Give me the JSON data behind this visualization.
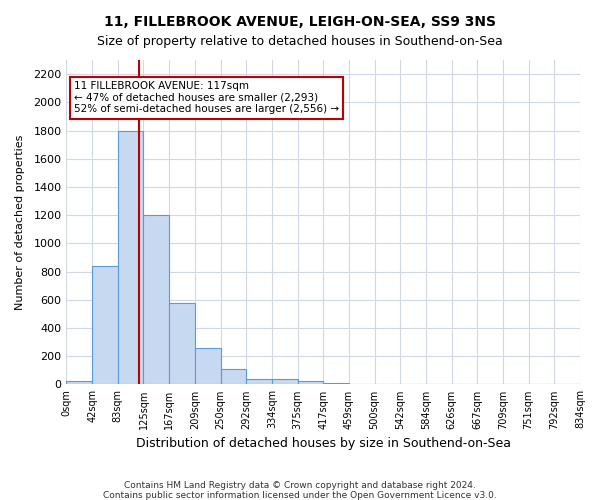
{
  "title_line1": "11, FILLEBROOK AVENUE, LEIGH-ON-SEA, SS9 3NS",
  "title_line2": "Size of property relative to detached houses in Southend-on-Sea",
  "xlabel": "Distribution of detached houses by size in Southend-on-Sea",
  "ylabel": "Number of detached properties",
  "footnote1": "Contains HM Land Registry data © Crown copyright and database right 2024.",
  "footnote2": "Contains public sector information licensed under the Open Government Licence v3.0.",
  "annotation_line1": "11 FILLEBROOK AVENUE: 117sqm",
  "annotation_line2": "← 47% of detached houses are smaller (2,293)",
  "annotation_line3": "52% of semi-detached houses are larger (2,556) →",
  "bar_color": "#c7d9f0",
  "bar_edge_color": "#5b9bd5",
  "ref_line_color": "#c00000",
  "annotation_box_color": "#c00000",
  "bg_color": "#ffffff",
  "grid_color": "#d0d8e8",
  "tick_labels": [
    "0sqm",
    "42sqm",
    "83sqm",
    "125sqm",
    "167sqm",
    "209sqm",
    "250sqm",
    "292sqm",
    "334sqm",
    "375sqm",
    "417sqm",
    "459sqm",
    "500sqm",
    "542sqm",
    "584sqm",
    "626sqm",
    "667sqm",
    "709sqm",
    "751sqm",
    "792sqm",
    "834sqm"
  ],
  "bar_values": [
    25,
    840,
    1800,
    1200,
    580,
    255,
    110,
    40,
    40,
    25,
    10,
    0,
    0,
    0,
    0,
    0,
    0,
    0,
    0,
    0
  ],
  "ylim": [
    0,
    2300
  ],
  "yticks": [
    0,
    200,
    400,
    600,
    800,
    1000,
    1200,
    1400,
    1600,
    1800,
    2000,
    2200
  ],
  "ref_line_x": 2.81,
  "figsize": [
    6.0,
    5.0
  ],
  "dpi": 100
}
